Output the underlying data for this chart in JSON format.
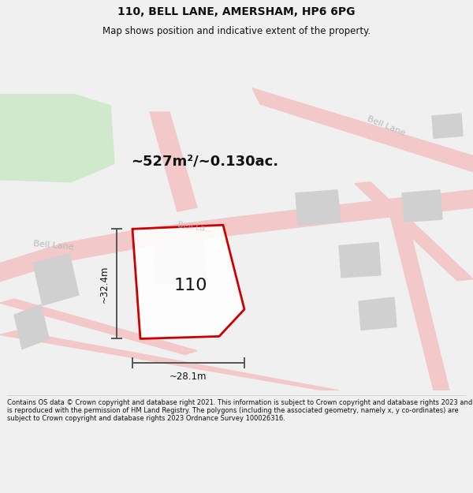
{
  "title": "110, BELL LANE, AMERSHAM, HP6 6PG",
  "subtitle": "Map shows position and indicative extent of the property.",
  "area_label": "~527m²/~0.130ac.",
  "number_label": "110",
  "dim_h_label": "~32.4m",
  "dim_w_label": "~28.1m",
  "footer": "Contains OS data © Crown copyright and database right 2021. This information is subject to Crown copyright and database rights 2023 and is reproduced with the permission of HM Land Registry. The polygons (including the associated geometry, namely x, y co-ordinates) are subject to Crown copyright and database rights 2023 Ordnance Survey 100026316.",
  "bg_color": "#f0f0f0",
  "map_bg": "#f8f8f8",
  "green_patch_color": "#d0e8cc",
  "road_color": "#f2c8c8",
  "building_color": "#d0d0d0",
  "plot_fill": "#ffffff",
  "plot_stroke": "#cc0000",
  "road_label_color": "#b8b8b8",
  "dim_line_color": "#555555",
  "text_color": "#111111",
  "footer_color": "#111111",
  "title_fontsize": 10,
  "subtitle_fontsize": 8.5,
  "area_fontsize": 13,
  "number_fontsize": 16,
  "road_label_fontsize": 8,
  "dim_fontsize": 8.5,
  "footer_fontsize": 6.0
}
